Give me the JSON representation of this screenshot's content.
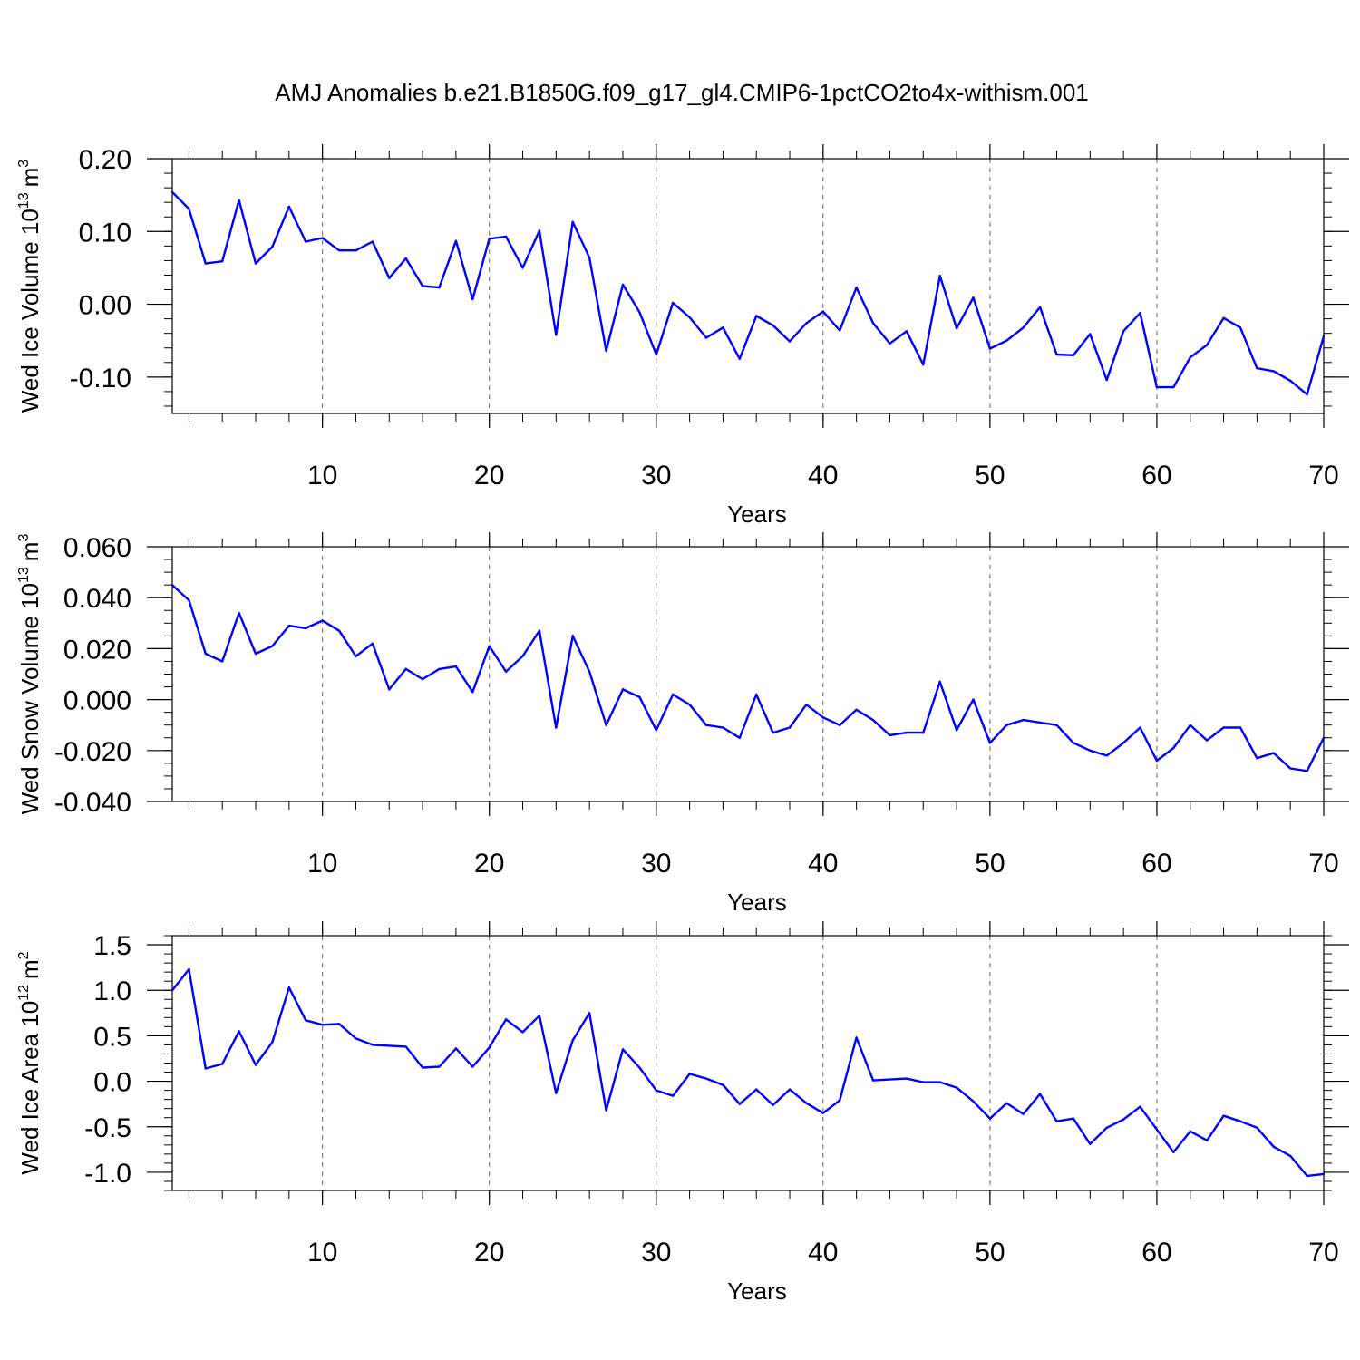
{
  "chart_data": [
    {
      "type": "line",
      "title": "AMJ Anomalies b.e21.B1850G.f09_g17_gl4.CMIP6-1pctCO2to4x-withism.001",
      "xlabel": "Years",
      "ylabel": "Wed Ice Volume 10",
      "ylabel_exp": "13",
      "ylabel_unit": "m",
      "ylabel_unit_exp": "3",
      "xlim": [
        1,
        70
      ],
      "ylim": [
        -0.15,
        0.2
      ],
      "xticks": [
        10,
        20,
        30,
        40,
        50,
        60,
        70
      ],
      "xtick_labels": [
        "10",
        "20",
        "30",
        "40",
        "50",
        "60",
        "70"
      ],
      "yticks": [
        -0.1,
        0.0,
        0.1,
        0.2
      ],
      "ytick_labels": [
        "-0.10",
        "0.00",
        "0.10",
        "0.20"
      ],
      "yminor_step": 0.02,
      "xminor_step": 2,
      "grid": "vertical dashed at major x ticks",
      "line_color": "#0000ff",
      "x": [
        1,
        2,
        3,
        4,
        5,
        6,
        7,
        8,
        9,
        10,
        11,
        12,
        13,
        14,
        15,
        16,
        17,
        18,
        19,
        20,
        21,
        22,
        23,
        24,
        25,
        26,
        27,
        28,
        29,
        30,
        31,
        32,
        33,
        34,
        35,
        36,
        37,
        38,
        39,
        40,
        41,
        42,
        43,
        44,
        45,
        46,
        47,
        48,
        49,
        50,
        51,
        52,
        53,
        54,
        55,
        56,
        57,
        58,
        59,
        60,
        61,
        62,
        63,
        64,
        65,
        66,
        67,
        68,
        69,
        70
      ],
      "y": [
        0.154,
        0.131,
        0.056,
        0.059,
        0.143,
        0.056,
        0.079,
        0.134,
        0.086,
        0.091,
        0.074,
        0.074,
        0.086,
        0.036,
        0.063,
        0.025,
        0.023,
        0.087,
        0.007,
        0.09,
        0.093,
        0.05,
        0.101,
        -0.042,
        0.113,
        0.064,
        -0.064,
        0.027,
        -0.011,
        -0.069,
        0.002,
        -0.018,
        -0.046,
        -0.032,
        -0.075,
        -0.016,
        -0.029,
        -0.051,
        -0.026,
        -0.01,
        -0.036,
        0.023,
        -0.026,
        -0.054,
        -0.037,
        -0.083,
        0.039,
        -0.033,
        0.009,
        -0.061,
        -0.05,
        -0.032,
        -0.004,
        -0.069,
        -0.07,
        -0.041,
        -0.104,
        -0.037,
        -0.012,
        -0.114,
        -0.114,
        -0.073,
        -0.056,
        -0.019,
        -0.032,
        -0.088,
        -0.092,
        -0.105,
        -0.124,
        -0.044
      ]
    },
    {
      "type": "line",
      "title": "",
      "xlabel": "Years",
      "ylabel": "Wed Snow Volume 10",
      "ylabel_exp": "13",
      "ylabel_unit": "m",
      "ylabel_unit_exp": "3",
      "xlim": [
        1,
        70
      ],
      "ylim": [
        -0.04,
        0.06
      ],
      "xticks": [
        10,
        20,
        30,
        40,
        50,
        60,
        70
      ],
      "xtick_labels": [
        "10",
        "20",
        "30",
        "40",
        "50",
        "60",
        "70"
      ],
      "yticks": [
        -0.04,
        -0.02,
        0.0,
        0.02,
        0.04,
        0.06
      ],
      "ytick_labels": [
        "-0.040",
        "-0.020",
        "0.000",
        "0.020",
        "0.040",
        "0.060"
      ],
      "yminor_step": 0.005,
      "xminor_step": 2,
      "grid": "vertical dashed at major x ticks",
      "line_color": "#0000ff",
      "x": [
        1,
        2,
        3,
        4,
        5,
        6,
        7,
        8,
        9,
        10,
        11,
        12,
        13,
        14,
        15,
        16,
        17,
        18,
        19,
        20,
        21,
        22,
        23,
        24,
        25,
        26,
        27,
        28,
        29,
        30,
        31,
        32,
        33,
        34,
        35,
        36,
        37,
        38,
        39,
        40,
        41,
        42,
        43,
        44,
        45,
        46,
        47,
        48,
        49,
        50,
        51,
        52,
        53,
        54,
        55,
        56,
        57,
        58,
        59,
        60,
        61,
        62,
        63,
        64,
        65,
        66,
        67,
        68,
        69,
        70
      ],
      "y": [
        0.045,
        0.039,
        0.018,
        0.015,
        0.034,
        0.018,
        0.021,
        0.029,
        0.028,
        0.031,
        0.027,
        0.017,
        0.022,
        0.004,
        0.012,
        0.008,
        0.012,
        0.013,
        0.003,
        0.021,
        0.011,
        0.017,
        0.027,
        -0.011,
        0.025,
        0.011,
        -0.01,
        0.004,
        0.001,
        -0.012,
        0.002,
        -0.002,
        -0.01,
        -0.011,
        -0.015,
        0.002,
        -0.013,
        -0.011,
        -0.002,
        -0.007,
        -0.01,
        -0.004,
        -0.008,
        -0.014,
        -0.013,
        -0.013,
        0.007,
        -0.012,
        0.0,
        -0.017,
        -0.01,
        -0.008,
        -0.009,
        -0.01,
        -0.017,
        -0.02,
        -0.022,
        -0.017,
        -0.011,
        -0.024,
        -0.019,
        -0.01,
        -0.016,
        -0.011,
        -0.011,
        -0.023,
        -0.021,
        -0.027,
        -0.028,
        -0.015
      ]
    },
    {
      "type": "line",
      "title": "",
      "xlabel": "Years",
      "ylabel": "Wed Ice Area 10",
      "ylabel_exp": "12",
      "ylabel_unit": "m",
      "ylabel_unit_exp": "2",
      "xlim": [
        1,
        70
      ],
      "ylim": [
        -1.2,
        1.6
      ],
      "xticks": [
        10,
        20,
        30,
        40,
        50,
        60,
        70
      ],
      "xtick_labels": [
        "10",
        "20",
        "30",
        "40",
        "50",
        "60",
        "70"
      ],
      "yticks": [
        -1.0,
        -0.5,
        0.0,
        0.5,
        1.0,
        1.5
      ],
      "ytick_labels": [
        "-1.0",
        "-0.5",
        "0.0",
        "0.5",
        "1.0",
        "1.5"
      ],
      "yminor_step": 0.1,
      "xminor_step": 2,
      "grid": "vertical dashed at major x ticks",
      "line_color": "#0000ff",
      "x": [
        1,
        2,
        3,
        4,
        5,
        6,
        7,
        8,
        9,
        10,
        11,
        12,
        13,
        14,
        15,
        16,
        17,
        18,
        19,
        20,
        21,
        22,
        23,
        24,
        25,
        26,
        27,
        28,
        29,
        30,
        31,
        32,
        33,
        34,
        35,
        36,
        37,
        38,
        39,
        40,
        41,
        42,
        43,
        44,
        45,
        46,
        47,
        48,
        49,
        50,
        51,
        52,
        53,
        54,
        55,
        56,
        57,
        58,
        59,
        60,
        61,
        62,
        63,
        64,
        65,
        66,
        67,
        68,
        69,
        70
      ],
      "y": [
        1.0,
        1.23,
        0.14,
        0.19,
        0.55,
        0.18,
        0.43,
        1.03,
        0.67,
        0.62,
        0.63,
        0.47,
        0.4,
        0.39,
        0.38,
        0.15,
        0.16,
        0.36,
        0.16,
        0.37,
        0.68,
        0.54,
        0.72,
        -0.13,
        0.45,
        0.75,
        -0.32,
        0.35,
        0.15,
        -0.1,
        -0.16,
        0.08,
        0.03,
        -0.04,
        -0.25,
        -0.09,
        -0.26,
        -0.09,
        -0.24,
        -0.35,
        -0.21,
        0.48,
        0.01,
        0.02,
        0.03,
        -0.01,
        -0.01,
        -0.07,
        -0.22,
        -0.41,
        -0.24,
        -0.36,
        -0.14,
        -0.44,
        -0.41,
        -0.69,
        -0.51,
        -0.42,
        -0.28,
        -0.53,
        -0.78,
        -0.55,
        -0.65,
        -0.38,
        -0.44,
        -0.51,
        -0.72,
        -0.82,
        -1.04,
        -1.02
      ]
    }
  ]
}
